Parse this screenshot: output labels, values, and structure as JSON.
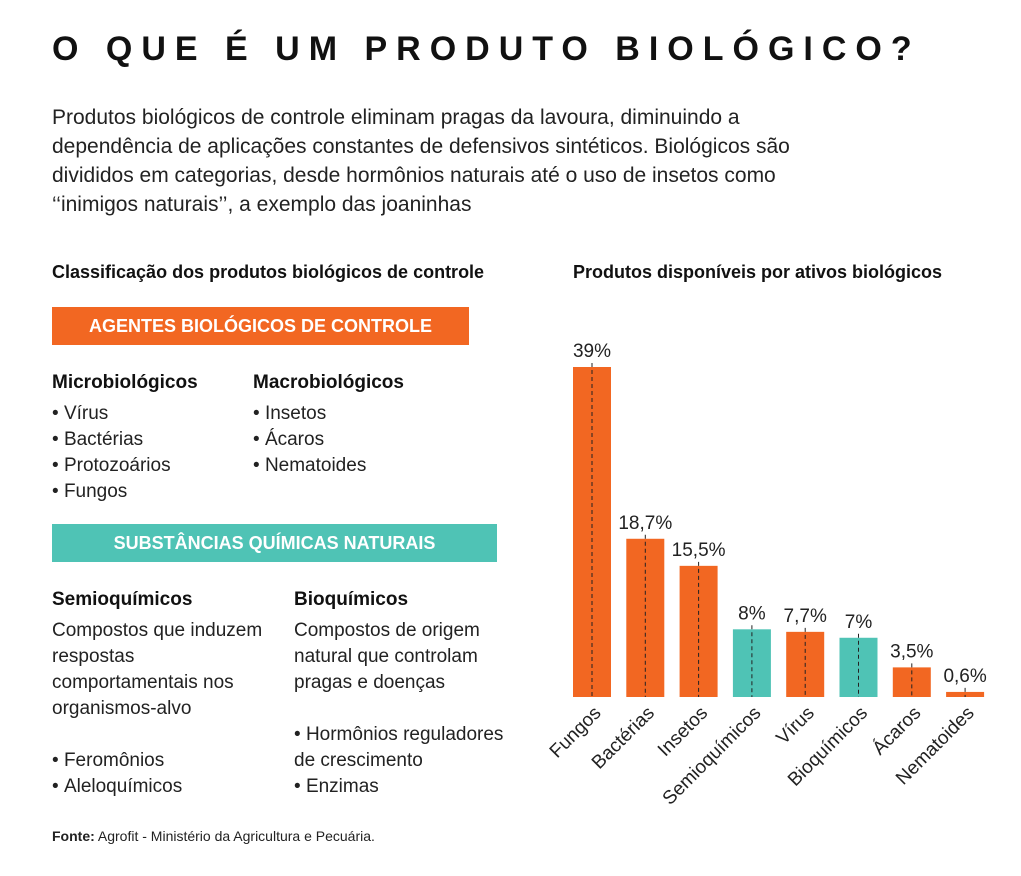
{
  "title": "O QUE É UM PRODUTO BIOLÓGICO?",
  "intro": "Produtos biológicos de controle eliminam pragas da lavoura, diminuindo a dependência de aplicações constantes de defensivos sintéticos. Biológicos são divididos em categorias, desde hormônios naturais até o uso de insetos como ‘‘inimigos naturais’’, a exemplo das joaninhas",
  "classification": {
    "heading": "Classificação dos produtos biológicos de controle",
    "agents": {
      "banner": "AGENTES BIOLÓGICOS DE CONTROLE",
      "micro": {
        "title": "Microbiológicos",
        "items": [
          "Vírus",
          "Bactérias",
          "Protozoários",
          "Fungos"
        ]
      },
      "macro": {
        "title": "Macrobiológicos",
        "items": [
          "Insetos",
          "Ácaros",
          "Nematoides"
        ]
      }
    },
    "substances": {
      "banner": "SUBSTÂNCIAS QUÍMICAS NATURAIS",
      "semio": {
        "title": "Semioquímicos",
        "description": "Compostos que induzem respostas comportamentais nos organismos-alvo",
        "items": [
          "Feromônios",
          "Aleloquímicos"
        ]
      },
      "bio": {
        "title": "Bioquímicos",
        "description": "Compostos de origem natural que controlam pragas e doenças",
        "items": [
          "Hormônios reguladores de crescimento",
          "Enzimas"
        ]
      }
    }
  },
  "source": {
    "label": "Fonte:",
    "text": "Agrofit - Ministério da Agricultura e Pecuária."
  },
  "colors": {
    "orange": "#f26722",
    "teal": "#4fc3b5"
  },
  "chart_data": {
    "type": "bar",
    "title": "Produtos disponíveis por ativos biológicos",
    "categories": [
      "Fungos",
      "Bactérias",
      "Insetos",
      "Semioquímicos",
      "Vírus",
      "Bioquímicos",
      "Ácaros",
      "Nematoides"
    ],
    "values": [
      39,
      18.7,
      15.5,
      8,
      7.7,
      7,
      3.5,
      0.6
    ],
    "labels": [
      "39%",
      "18,7%",
      "15,5%",
      "8%",
      "7,7%",
      "7%",
      "3,5%",
      "0,6%"
    ],
    "groups": [
      "agente",
      "agente",
      "agente",
      "substancia",
      "agente",
      "substancia",
      "agente",
      "agente"
    ],
    "unit": "%",
    "xlabel": "",
    "ylabel": "",
    "ylim": [
      0,
      39
    ],
    "grid": false,
    "legend": "none"
  }
}
